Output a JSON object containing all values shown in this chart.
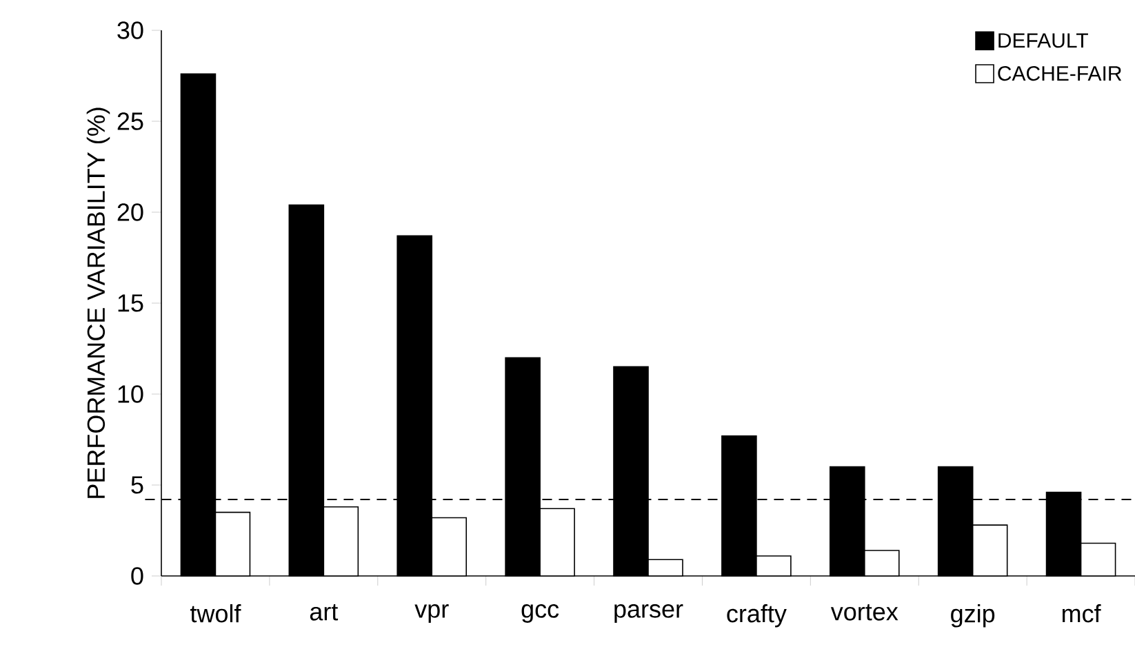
{
  "chart_data": {
    "type": "bar",
    "ylabel": "PERFORMANCE VARIABILITY (%)",
    "categories": [
      "twolf",
      "art",
      "vpr",
      "gcc",
      "parser",
      "crafty",
      "vortex",
      "gzip",
      "mcf"
    ],
    "series": [
      {
        "name": "DEFAULT",
        "color": "#000000",
        "values": [
          27.6,
          20.4,
          18.7,
          12.0,
          11.5,
          7.7,
          6.0,
          6.0,
          4.6
        ]
      },
      {
        "name": "CACHE-FAIR",
        "color": "#ffffff",
        "values": [
          3.5,
          3.8,
          3.2,
          3.7,
          0.9,
          1.1,
          1.4,
          2.8,
          1.8
        ]
      }
    ],
    "ylim": [
      0,
      30
    ],
    "yticks": [
      0,
      5,
      10,
      15,
      20,
      25,
      30
    ],
    "ref_lines": [
      {
        "axis": "y",
        "value": 4.2,
        "line_style": "dashed"
      }
    ],
    "legend": "top right"
  }
}
